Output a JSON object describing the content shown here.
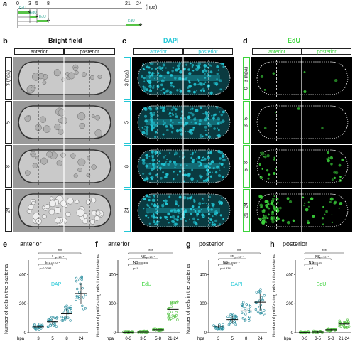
{
  "panel_labels": {
    "a": "a",
    "b": "b",
    "c": "c",
    "d": "d",
    "e": "e",
    "f": "f",
    "g": "g",
    "h": "h"
  },
  "timeline": {
    "ticks": [
      "0",
      "3",
      "5",
      "8",
      "21",
      "24"
    ],
    "unit": "(hpa)",
    "pulses": [
      "EdU",
      "EdU",
      "EdU",
      "EdU"
    ]
  },
  "headers": {
    "bright_field": "Bright field",
    "dapi": "DAPI",
    "edu": "EdU",
    "anterior": "anterior",
    "posterior": "posterior"
  },
  "rows_b": [
    "3 (hpa)",
    "5",
    "8",
    "24"
  ],
  "rows_c": [
    "3 (hpa)",
    "5",
    "8",
    "24"
  ],
  "rows_d": [
    "0 - 3 (hpa)",
    "3 - 5",
    "5 - 8",
    "21 - 24"
  ],
  "colors": {
    "dapi": "#22c7d6",
    "edu": "#3bd33b",
    "bar_green": "#58c448",
    "series_blue": "#2d8fa0"
  },
  "plots": {
    "e": {
      "title": "anterior",
      "stain": "DAPI",
      "ylabel": "Number of cells in the blastema",
      "xprefix": "hpa",
      "sig": [
        "***",
        "p<10⁻³",
        "*",
        "p=1.1×10⁻²",
        "*",
        "p=0.0392"
      ]
    },
    "f": {
      "title": "anterior",
      "stain": "EdU",
      "ylabel": "Number of proliferating cells in the blastema",
      "xprefix": "hpa",
      "sig": [
        "***",
        "p<10⁻⁵",
        "NS",
        "p=0.466",
        "NS",
        "p=1"
      ]
    },
    "g": {
      "title": "posterior",
      "stain": "DAPI",
      "ylabel": "Number of cells in the blastema",
      "xprefix": "hpa",
      "sig": [
        "***",
        "p<10⁻⁴",
        "***",
        "p=6.3×10⁻⁴",
        "NS",
        "p=0.334"
      ]
    },
    "h": {
      "title": "posterior",
      "stain": "EdU",
      "ylabel": "Number of proliferating cells in the blastema",
      "xprefix": "hpa",
      "sig": [
        "***",
        "p<10⁻⁵",
        "NS",
        "p=0.93",
        "NS",
        "p=1"
      ]
    }
  },
  "chart_data": [
    {
      "type": "scatter",
      "panel": "e",
      "title": "anterior",
      "ylabel": "Number of cells in the blastema",
      "categories": [
        "3",
        "5",
        "8",
        "24"
      ],
      "ylim": [
        0,
        500
      ],
      "yticks": [
        "0",
        "200",
        "400"
      ],
      "series": [
        {
          "name": "DAPI",
          "means": [
            40,
            75,
            130,
            270
          ]
        }
      ]
    },
    {
      "type": "scatter",
      "panel": "f",
      "title": "anterior",
      "ylabel": "Number of proliferating cells in the blastema",
      "categories": [
        "0-3",
        "3-5",
        "5-8",
        "21-24"
      ],
      "ylim": [
        0,
        500
      ],
      "yticks": [
        "0",
        "200",
        "400"
      ],
      "series": [
        {
          "name": "EdU",
          "means": [
            3,
            5,
            20,
            160
          ]
        }
      ]
    },
    {
      "type": "scatter",
      "panel": "g",
      "title": "posterior",
      "ylabel": "Number of cells in the blastema",
      "categories": [
        "3",
        "5",
        "8",
        "24"
      ],
      "ylim": [
        0,
        500
      ],
      "yticks": [
        "0",
        "200",
        "400"
      ],
      "series": [
        {
          "name": "DAPI",
          "means": [
            45,
            90,
            150,
            210
          ]
        }
      ]
    },
    {
      "type": "scatter",
      "panel": "h",
      "title": "posterior",
      "ylabel": "Number of proliferating cells in the blastema",
      "categories": [
        "0-3",
        "3-5",
        "5-8",
        "21-24"
      ],
      "ylim": [
        0,
        500
      ],
      "yticks": [
        "0",
        "200",
        "400"
      ],
      "series": [
        {
          "name": "EdU",
          "means": [
            2,
            5,
            20,
            60
          ]
        }
      ]
    }
  ]
}
